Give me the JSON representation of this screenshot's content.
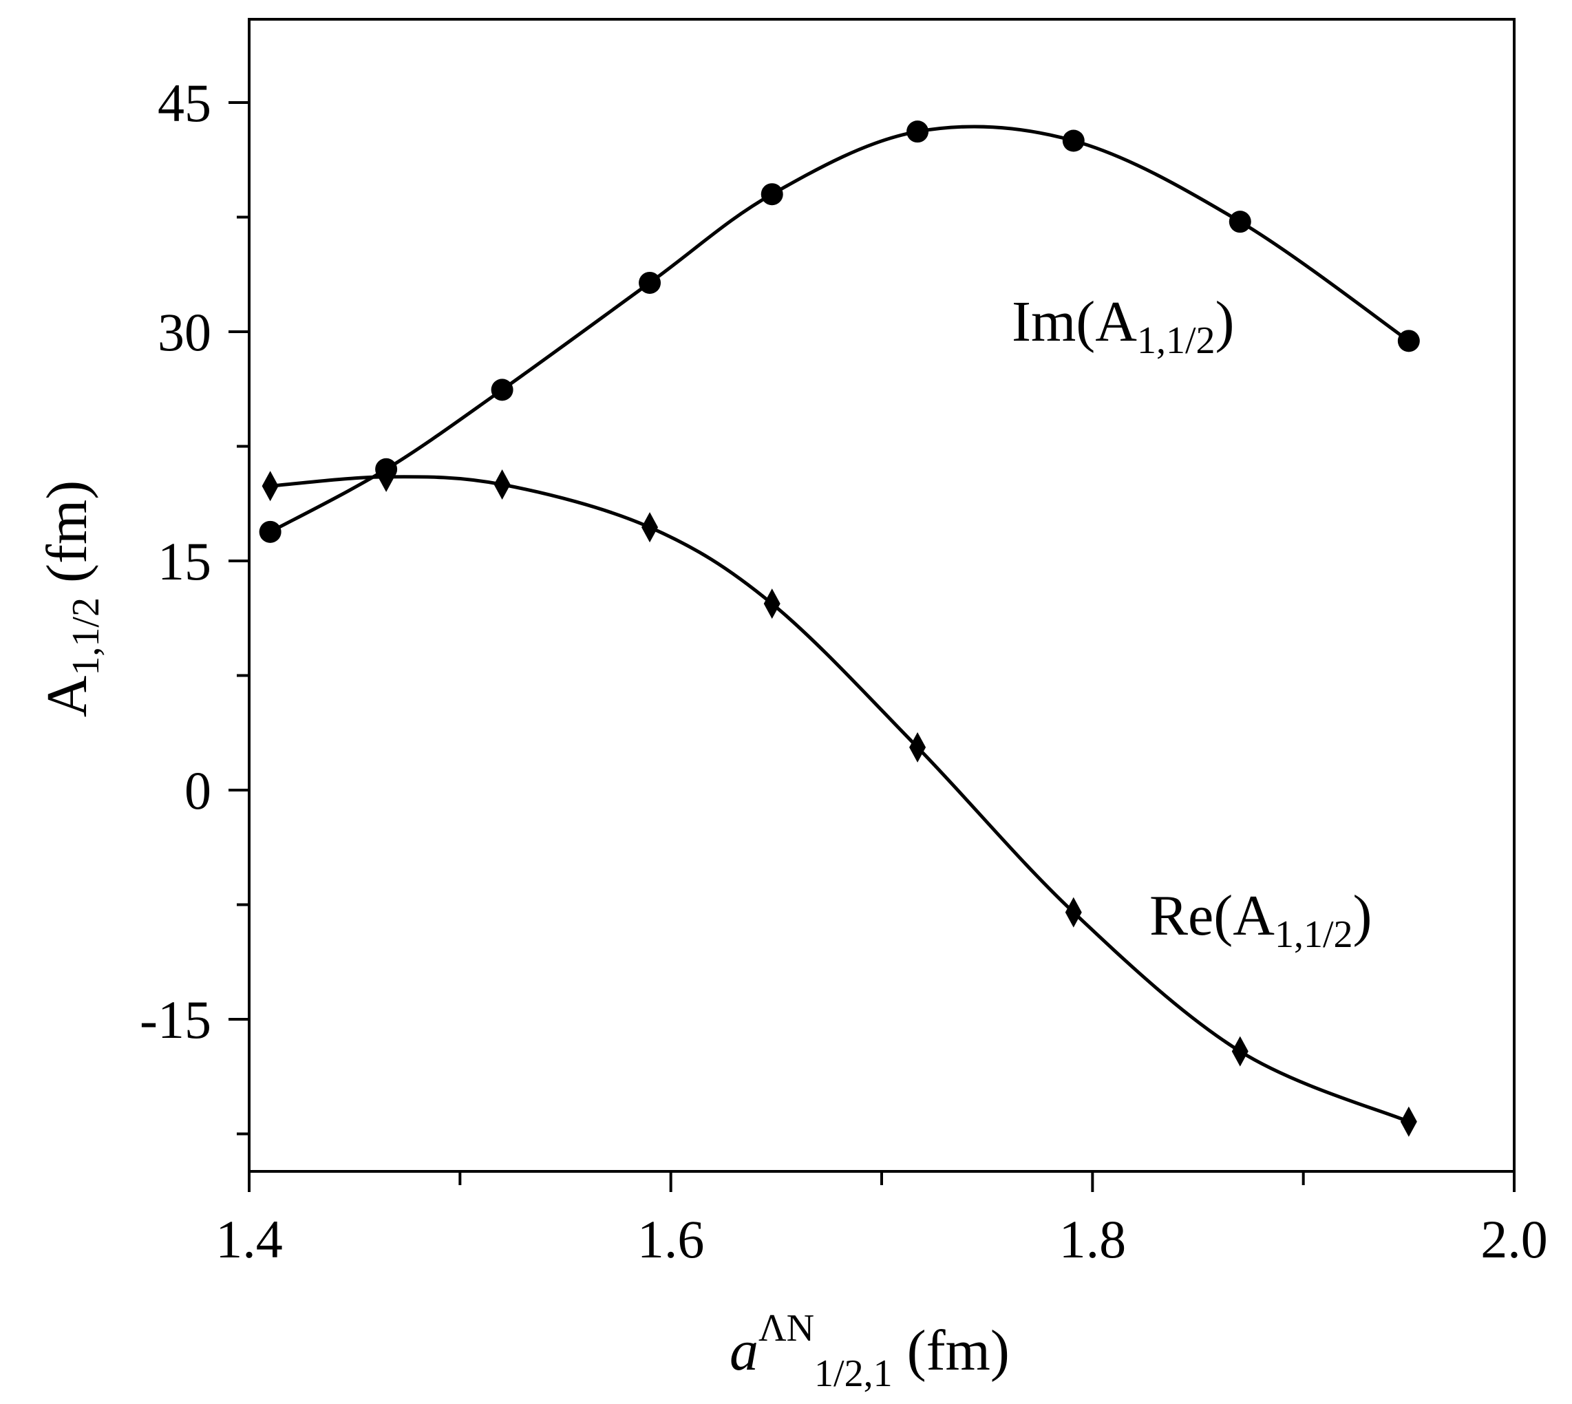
{
  "chart_data": {
    "type": "line",
    "ylabel": {
      "main": "A",
      "sub": "1,1/2",
      "unit": " (fm)"
    },
    "xlabel": {
      "main": "a",
      "sup": "ΛN",
      "sub": "1/2,1",
      "unit": " (fm)"
    },
    "xlim": [
      1.4,
      2.0
    ],
    "ylim": [
      -25,
      50
    ],
    "x_ticks": [
      1.4,
      1.6,
      1.8,
      2.0
    ],
    "x_tick_labels": [
      "1.4",
      "1.6",
      "1.8",
      "2.0"
    ],
    "x_minor_ticks": [
      1.5,
      1.7,
      1.9
    ],
    "y_ticks": [
      -15,
      0,
      15,
      30,
      45
    ],
    "y_tick_labels": [
      "-15",
      "0",
      "15",
      "30",
      "45"
    ],
    "y_minor_ticks": [
      -22.5,
      -7.5,
      7.5,
      22.5,
      37.5
    ],
    "grid": false,
    "series": [
      {
        "name": "Im(A1,1/2)",
        "label": {
          "main": "Im(A",
          "sub": "1,1/2",
          "close": ")"
        },
        "marker": "circle",
        "x": [
          1.41,
          1.465,
          1.52,
          1.59,
          1.648,
          1.717,
          1.791,
          1.87,
          1.95
        ],
        "y": [
          16.9,
          21.0,
          26.2,
          33.2,
          39.0,
          43.1,
          42.5,
          37.2,
          29.4
        ]
      },
      {
        "name": "Re(A1,1/2)",
        "label": {
          "main": "Re(A",
          "sub": "1,1/2",
          "close": ")"
        },
        "marker": "diamond",
        "x": [
          1.41,
          1.465,
          1.52,
          1.59,
          1.648,
          1.717,
          1.791,
          1.87,
          1.95
        ],
        "y": [
          19.9,
          20.5,
          20.0,
          17.2,
          12.2,
          2.8,
          -8.0,
          -17.1,
          -21.7
        ]
      }
    ]
  }
}
